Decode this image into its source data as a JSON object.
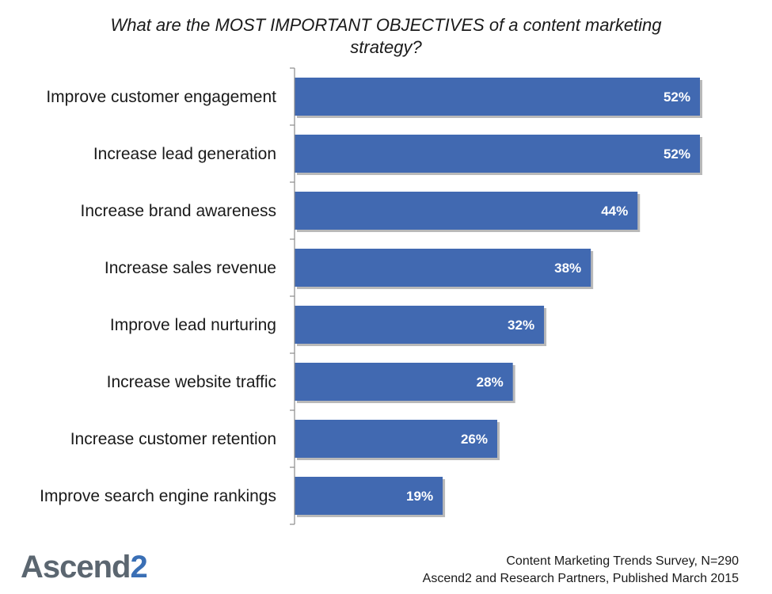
{
  "chart_data": {
    "type": "bar",
    "orientation": "horizontal",
    "title_lines": [
      "What are the MOST IMPORTANT OBJECTIVES of a content marketing",
      "strategy?"
    ],
    "categories": [
      "Improve customer engagement",
      "Increase lead generation",
      "Increase brand awareness",
      "Increase sales revenue",
      "Improve lead nurturing",
      "Increase website traffic",
      "Increase customer retention",
      "Improve search engine rankings"
    ],
    "values": [
      52,
      52,
      44,
      38,
      32,
      28,
      26,
      19
    ],
    "value_labels": [
      "52%",
      "52%",
      "44%",
      "38%",
      "32%",
      "28%",
      "26%",
      "19%"
    ],
    "xlim": [
      0,
      60
    ],
    "grid": false,
    "legend": "none",
    "colors": {
      "bar": "#4169b1",
      "bar_shadow": "#b9b9b9",
      "axis": "#8c8c8c"
    }
  },
  "footer": {
    "logo_main": "Ascend",
    "logo_digit": "2",
    "source_lines": [
      "Content Marketing Trends Survey, N=290",
      "Ascend2 and Research Partners, Published March 2015"
    ]
  }
}
